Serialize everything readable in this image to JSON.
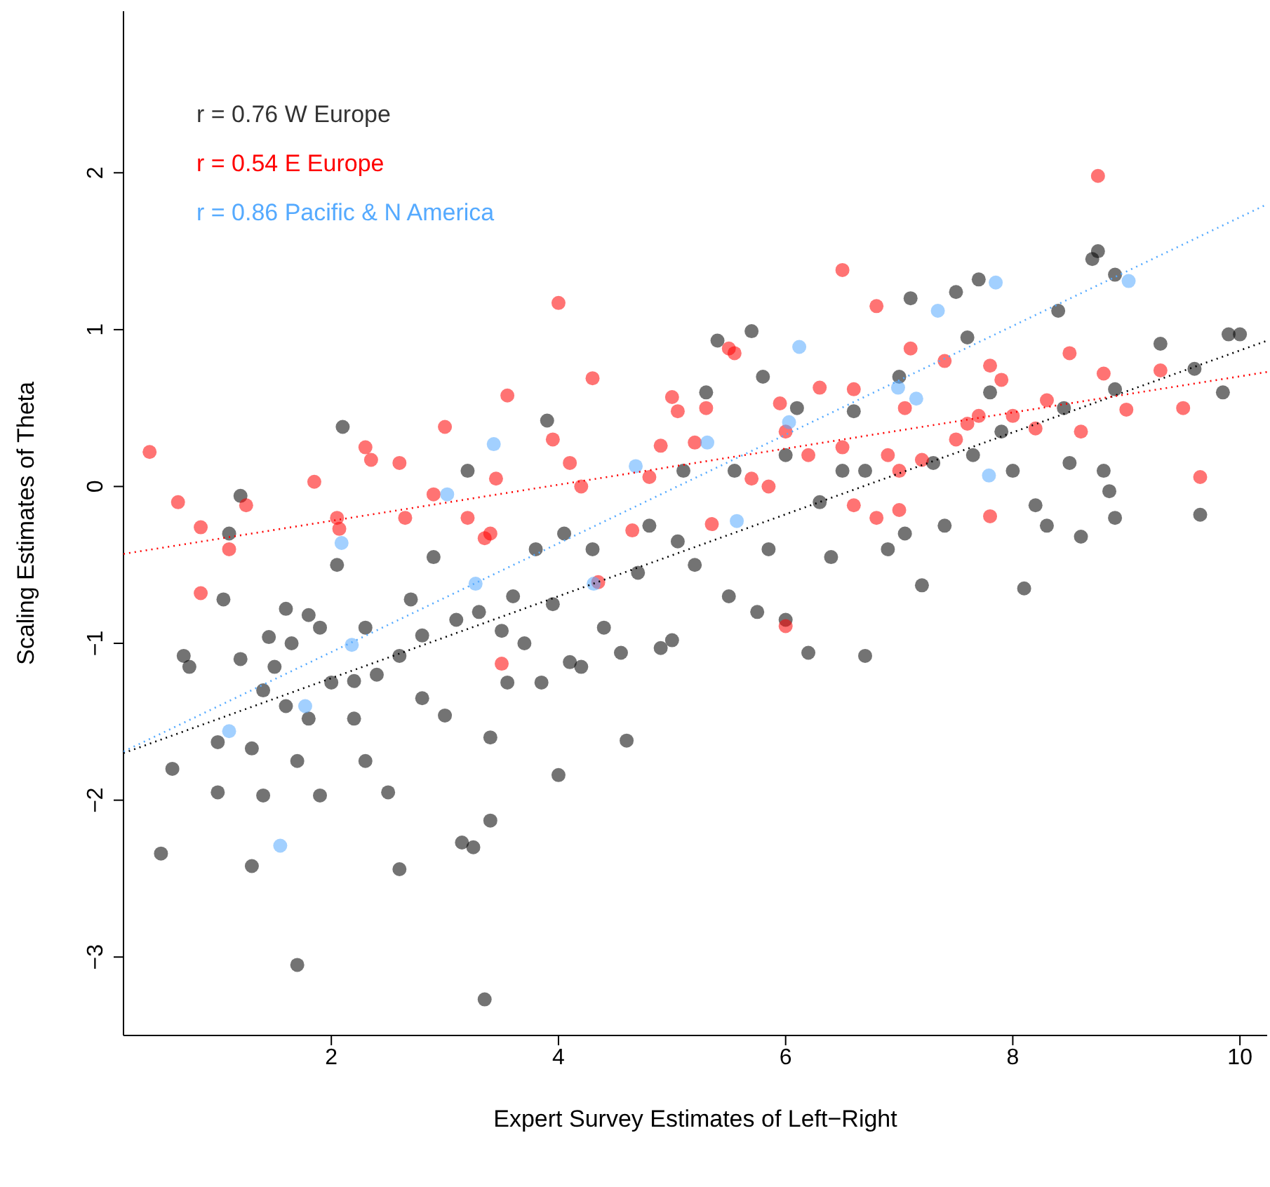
{
  "chart_data": {
    "type": "scatter",
    "xlabel": "Expert Survey Estimates of Left−Right",
    "ylabel": "Scaling Estimates of Theta",
    "xlim": [
      0.17,
      10.24
    ],
    "ylim": [
      -3.5,
      3.03
    ],
    "xticks": [
      2,
      4,
      6,
      8,
      10
    ],
    "yticks": [
      -3,
      -2,
      -1,
      0,
      1,
      2
    ],
    "legend": "top left",
    "marker": "circle",
    "series": [
      {
        "name": "r = 0.76 W Europe",
        "color": "#000000",
        "x": [
          0.5,
          0.6,
          0.7,
          0.75,
          1.0,
          1.0,
          1.05,
          1.1,
          1.2,
          1.2,
          1.3,
          1.3,
          1.4,
          1.4,
          1.45,
          1.5,
          1.6,
          1.6,
          1.65,
          1.7,
          1.7,
          1.8,
          1.8,
          1.9,
          1.9,
          2.0,
          2.05,
          2.1,
          2.2,
          2.2,
          2.3,
          2.3,
          2.4,
          2.5,
          2.6,
          2.6,
          2.7,
          2.8,
          2.8,
          2.9,
          3.0,
          3.1,
          3.15,
          3.2,
          3.25,
          3.3,
          3.35,
          3.4,
          3.4,
          3.5,
          3.55,
          3.6,
          3.7,
          3.8,
          3.85,
          3.9,
          3.95,
          4.0,
          4.05,
          4.1,
          4.2,
          4.3,
          4.4,
          4.55,
          4.6,
          4.7,
          4.8,
          4.9,
          5.0,
          5.05,
          5.1,
          5.2,
          5.3,
          5.4,
          5.5,
          5.55,
          5.7,
          5.75,
          5.8,
          5.85,
          6.0,
          6.0,
          6.1,
          6.2,
          6.3,
          6.4,
          6.5,
          6.6,
          6.7,
          6.7,
          6.9,
          7.0,
          7.05,
          7.1,
          7.2,
          7.3,
          7.4,
          7.5,
          7.6,
          7.7,
          7.8,
          7.9,
          8.0,
          8.1,
          8.2,
          8.3,
          8.4,
          8.5,
          8.6,
          8.7,
          8.75,
          8.8,
          8.85,
          8.9,
          8.9,
          9.3,
          9.6,
          9.65,
          9.85,
          9.9,
          10.0,
          8.9,
          8.45,
          7.65
        ],
        "values": [
          -2.34,
          -1.8,
          -1.08,
          -1.15,
          -1.63,
          -1.95,
          -0.72,
          -0.3,
          -0.06,
          -1.1,
          -1.67,
          -2.42,
          -1.3,
          -1.97,
          -0.96,
          -1.15,
          -1.4,
          -0.78,
          -1.0,
          -3.05,
          -1.75,
          -0.82,
          -1.48,
          -0.9,
          -1.97,
          -1.25,
          -0.5,
          0.38,
          -1.48,
          -1.24,
          -0.9,
          -1.75,
          -1.2,
          -1.95,
          -2.44,
          -1.08,
          -0.72,
          -1.35,
          -0.95,
          -0.45,
          -1.46,
          -0.85,
          -2.27,
          0.1,
          -2.3,
          -0.8,
          -3.27,
          -2.13,
          -1.6,
          -0.92,
          -1.25,
          -0.7,
          -1.0,
          -0.4,
          -1.25,
          0.42,
          -0.75,
          -1.84,
          -0.3,
          -1.12,
          -1.15,
          -0.4,
          -0.9,
          -1.06,
          -1.62,
          -0.55,
          -0.25,
          -1.03,
          -0.98,
          -0.35,
          0.1,
          -0.5,
          0.6,
          0.93,
          -0.7,
          0.1,
          0.99,
          -0.8,
          0.7,
          -0.4,
          -0.85,
          0.2,
          0.5,
          -1.06,
          -0.1,
          -0.45,
          0.1,
          0.48,
          -1.08,
          0.1,
          -0.4,
          0.7,
          -0.3,
          1.2,
          -0.63,
          0.15,
          -0.25,
          1.24,
          0.95,
          1.32,
          0.6,
          0.35,
          0.1,
          -0.65,
          -0.12,
          -0.25,
          1.12,
          0.15,
          -0.32,
          1.45,
          1.5,
          0.1,
          -0.03,
          1.35,
          -0.2,
          0.91,
          0.75,
          -0.18,
          0.6,
          0.97,
          0.97,
          0.62,
          0.5,
          0.2
        ]
      },
      {
        "name": "r = 0.54 E Europe",
        "color": "#ff0000",
        "x": [
          0.4,
          0.65,
          0.85,
          0.85,
          1.25,
          1.1,
          1.85,
          2.05,
          2.07,
          2.3,
          2.35,
          2.6,
          2.65,
          2.9,
          3.0,
          3.2,
          3.35,
          3.4,
          3.45,
          3.55,
          3.5,
          3.95,
          4.0,
          4.1,
          4.2,
          4.3,
          4.35,
          4.65,
          4.8,
          4.9,
          5.0,
          5.05,
          5.2,
          5.3,
          5.5,
          5.55,
          5.35,
          5.7,
          5.85,
          6.0,
          5.95,
          6.0,
          6.2,
          6.3,
          6.5,
          6.6,
          6.5,
          6.6,
          6.8,
          6.9,
          7.0,
          7.05,
          7.1,
          7.2,
          7.4,
          7.5,
          7.6,
          7.7,
          7.8,
          7.8,
          7.9,
          8.0,
          8.2,
          8.3,
          8.5,
          8.6,
          8.75,
          8.8,
          9.0,
          9.3,
          9.5,
          9.65,
          7.0,
          6.8
        ],
        "values": [
          0.22,
          -0.1,
          -0.26,
          -0.68,
          -0.12,
          -0.4,
          0.03,
          -0.2,
          -0.27,
          0.25,
          0.17,
          0.15,
          -0.2,
          -0.05,
          0.38,
          -0.2,
          -0.33,
          -0.3,
          0.05,
          0.58,
          -1.13,
          0.3,
          1.17,
          0.15,
          0.0,
          0.69,
          -0.61,
          -0.28,
          0.06,
          0.26,
          0.57,
          0.48,
          0.28,
          0.5,
          0.88,
          0.85,
          -0.24,
          0.05,
          0.0,
          0.35,
          0.53,
          -0.89,
          0.2,
          0.63,
          1.38,
          0.62,
          0.25,
          -0.12,
          1.15,
          0.2,
          0.1,
          0.5,
          0.88,
          0.17,
          0.8,
          0.3,
          0.4,
          0.45,
          0.77,
          -0.19,
          0.68,
          0.45,
          0.37,
          0.55,
          0.85,
          0.35,
          1.98,
          0.72,
          0.49,
          0.74,
          0.5,
          0.06,
          -0.15,
          -0.2
        ]
      },
      {
        "name": "r = 0.86 Pacific & N America",
        "color": "#55aaff",
        "x": [
          1.55,
          1.1,
          1.77,
          2.18,
          2.09,
          3.02,
          3.43,
          3.27,
          4.31,
          4.68,
          5.31,
          5.57,
          6.12,
          6.03,
          6.99,
          7.34,
          7.85,
          7.79,
          7.15,
          9.02
        ],
        "values": [
          -2.29,
          -1.56,
          -1.4,
          -1.01,
          -0.36,
          -0.05,
          0.27,
          -0.62,
          -0.62,
          0.13,
          0.28,
          -0.22,
          0.89,
          0.41,
          0.63,
          1.12,
          1.3,
          0.07,
          0.56,
          1.31
        ]
      },
      {
        "type": "line",
        "marker": "none",
        "line_style": "dotted",
        "color": "#000000",
        "x": [
          0.17,
          10.24
        ],
        "values": [
          -1.7,
          0.93
        ]
      },
      {
        "type": "line",
        "marker": "none",
        "line_style": "dotted",
        "color": "#ff0000",
        "x": [
          0.17,
          10.24
        ],
        "values": [
          -0.43,
          0.73
        ]
      },
      {
        "type": "line",
        "marker": "none",
        "line_style": "dotted",
        "color": "#55aaff",
        "x": [
          0.17,
          10.24
        ],
        "values": [
          -1.69,
          1.8
        ]
      }
    ]
  }
}
